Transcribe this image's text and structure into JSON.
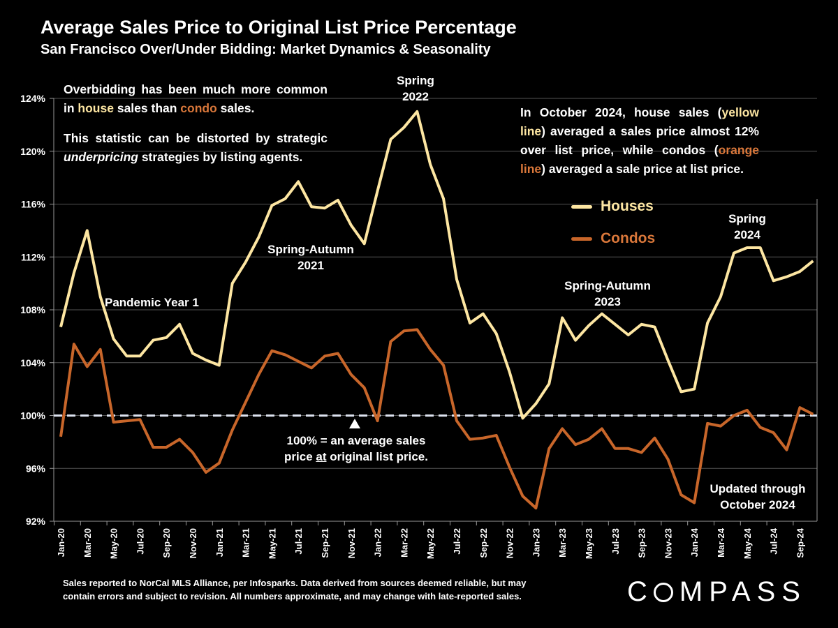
{
  "title": "Average Sales Price to Original List Price Percentage",
  "subtitle": "San Francisco Over/Under Bidding: Market Dynamics & Seasonality",
  "left_note": {
    "p1_pre": "Overbidding has been much more common in ",
    "p1_house": "house",
    "p1_mid": " sales than ",
    "p1_condo": "condo",
    "p1_post": " sales.",
    "p2_pre": "This statistic can be distorted by strategic ",
    "p2_em": "underpricing",
    "p2_post": " strategies by listing agents."
  },
  "right_note": {
    "a": "In October 2024, house sales (",
    "b": "yellow line",
    "c": ") averaged a sales price almost 12% over list price, while condos (",
    "d": "orange line",
    "e": ") averaged a sale price at list price."
  },
  "annotations": {
    "spring2022": [
      "Spring",
      "2022"
    ],
    "sa2021": [
      "Spring-Autumn",
      "2021"
    ],
    "pandemic": "Pandemic Year 1",
    "sa2023": [
      "Spring-Autumn",
      "2023"
    ],
    "spring2024": [
      "Spring",
      "2024"
    ],
    "updated": [
      "Updated through",
      "October 2024"
    ],
    "baseline_pre": "100% = an average sales",
    "baseline_mid1": "price ",
    "baseline_at": "at",
    "baseline_mid2": " original list price."
  },
  "footer": [
    "Sales reported to NorCal MLS Alliance, per Infosparks. Data derived from sources deemed reliable, but may",
    "contain errors and subject to revision. All numbers approximate, and may change with late-reported sales."
  ],
  "logo": "COMPASS",
  "colors": {
    "houses": "#FDE6A2",
    "condos": "#C8662A",
    "grid": "#555555",
    "baseline": "#DDE3F0"
  },
  "chart_data": {
    "type": "line",
    "title": "Average Sales Price to Original List Price Percentage",
    "ylabel": "",
    "xlabel": "",
    "ylim": [
      92,
      124
    ],
    "yticks": [
      92,
      96,
      100,
      104,
      108,
      112,
      116,
      120,
      124
    ],
    "ytick_labels": [
      "92%",
      "96%",
      "100%",
      "104%",
      "108%",
      "112%",
      "116%",
      "120%",
      "124%"
    ],
    "x": [
      "Jan-20",
      "Feb-20",
      "Mar-20",
      "Apr-20",
      "May-20",
      "Jun-20",
      "Jul-20",
      "Aug-20",
      "Sep-20",
      "Oct-20",
      "Nov-20",
      "Dec-20",
      "Jan-21",
      "Feb-21",
      "Mar-21",
      "Apr-21",
      "May-21",
      "Jun-21",
      "Jul-21",
      "Aug-21",
      "Sep-21",
      "Oct-21",
      "Nov-21",
      "Dec-21",
      "Jan-22",
      "Feb-22",
      "Mar-22",
      "Apr-22",
      "May-22",
      "Jun-22",
      "Jul-22",
      "Aug-22",
      "Sep-22",
      "Oct-22",
      "Nov-22",
      "Dec-22",
      "Jan-23",
      "Feb-23",
      "Mar-23",
      "Apr-23",
      "May-23",
      "Jun-23",
      "Jul-23",
      "Aug-23",
      "Sep-23",
      "Oct-23",
      "Nov-23",
      "Dec-23",
      "Jan-24",
      "Feb-24",
      "Mar-24",
      "Apr-24",
      "May-24",
      "Jun-24",
      "Jul-24",
      "Aug-24",
      "Sep-24",
      "Oct-24"
    ],
    "xtick_labels": [
      "Jan-20",
      "Mar-20",
      "May-20",
      "Jul-20",
      "Sep-20",
      "Nov-20",
      "Jan-21",
      "Mar-21",
      "May-21",
      "Jul-21",
      "Sep-21",
      "Nov-21",
      "Jan-22",
      "Mar-22",
      "May-22",
      "Jul-22",
      "Sep-22",
      "Nov-22",
      "Jan-23",
      "Mar-23",
      "May-23",
      "Jul-23",
      "Sep-23",
      "Nov-23",
      "Jan-24",
      "Mar-24",
      "May-24",
      "Jul-24",
      "Sep-24"
    ],
    "series": [
      {
        "name": "Houses",
        "values": [
          106.7,
          110.8,
          114.0,
          109.0,
          105.8,
          104.5,
          104.5,
          105.7,
          105.9,
          106.9,
          104.7,
          104.2,
          103.8,
          110.0,
          111.6,
          113.5,
          115.9,
          116.4,
          117.7,
          115.8,
          115.7,
          116.3,
          114.4,
          113.0,
          117.0,
          120.9,
          121.8,
          123.0,
          119.0,
          116.4,
          110.3,
          107.0,
          107.7,
          106.2,
          103.3,
          99.8,
          100.9,
          102.4,
          107.4,
          105.7,
          106.8,
          107.7,
          106.9,
          106.1,
          106.9,
          106.7,
          104.2,
          101.8,
          102.0,
          107.0,
          109.0,
          112.3,
          112.7,
          112.7,
          110.2,
          110.5,
          110.9,
          111.7
        ]
      },
      {
        "name": "Condos",
        "values": [
          98.4,
          105.4,
          103.7,
          105.0,
          99.5,
          99.6,
          99.7,
          97.6,
          97.6,
          98.2,
          97.2,
          95.7,
          96.4,
          98.9,
          101.0,
          103.1,
          104.9,
          104.6,
          104.1,
          103.6,
          104.5,
          104.7,
          103.1,
          102.1,
          99.6,
          105.6,
          106.4,
          106.5,
          105.0,
          103.8,
          99.6,
          98.2,
          98.3,
          98.5,
          96.1,
          93.9,
          93.0,
          97.5,
          99.0,
          97.8,
          98.2,
          99.0,
          97.5,
          97.5,
          97.2,
          98.3,
          96.7,
          94.0,
          93.4,
          99.4,
          99.2,
          100.0,
          100.4,
          99.1,
          98.7,
          97.4,
          100.6,
          100.1
        ]
      }
    ],
    "reference_line": {
      "value": 100,
      "style": "dashed"
    },
    "legend": [
      "Houses",
      "Condos"
    ],
    "legend_position": "center-right",
    "grid": true
  }
}
